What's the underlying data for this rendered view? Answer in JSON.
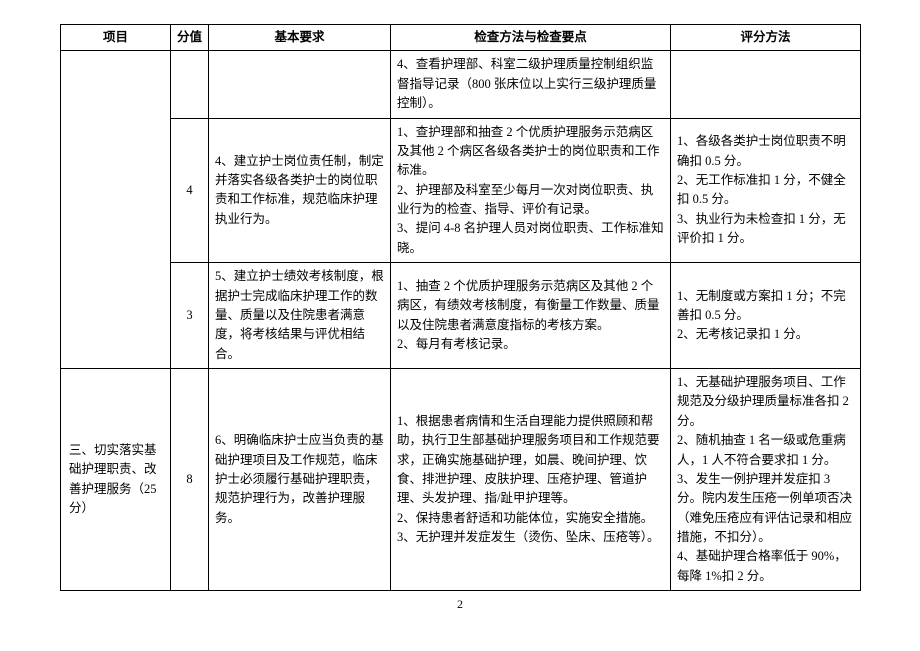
{
  "header": {
    "col1": "项目",
    "col2": "分值",
    "col3": "基本要求",
    "col4": "检查方法与检查要点",
    "col5": "评分方法"
  },
  "rows": {
    "r0": {
      "method": "4、查看护理部、科室二级护理质量控制组织监督指导记录（800 张床位以上实行三级护理质量控制）。"
    },
    "r1": {
      "score": "4",
      "req": "4、建立护士岗位责任制，制定并落实各级各类护士的岗位职责和工作标准，规范临床护理执业行为。",
      "method": "1、查护理部和抽查 2 个优质护理服务示范病区及其他 2 个病区各级各类护士的岗位职责和工作标准。\n2、护理部及科室至少每月一次对岗位职责、执业行为的检查、指导、评价有记录。\n3、提问 4-8 名护理人员对岗位职责、工作标准知晓。",
      "scoring": "1、各级各类护士岗位职责不明确扣 0.5 分。\n2、无工作标准扣 1 分，不健全扣 0.5 分。\n3、执业行为未检查扣 1 分，无评价扣 1 分。"
    },
    "r2": {
      "score": "3",
      "req": "5、建立护士绩效考核制度，根据护士完成临床护理工作的数量、质量以及住院患者满意度，将考核结果与评优相结合。",
      "method": "1、抽查 2 个优质护理服务示范病区及其他 2 个病区，有绩效考核制度，有衡量工作数量、质量以及住院患者满意度指标的考核方案。\n2、每月有考核记录。",
      "scoring": "1、无制度或方案扣 1 分；不完善扣 0.5 分。\n2、无考核记录扣 1 分。"
    },
    "r3": {
      "project": "三、切实落实基础护理职责、改善护理服务（25 分）",
      "score": "8",
      "req": "6、明确临床护士应当负责的基础护理项目及工作规范，临床护士必须履行基础护理职责，规范护理行为，改善护理服务。",
      "method": "1、根据患者病情和生活自理能力提供照顾和帮助，执行卫生部基础护理服务项目和工作规范要求，正确实施基础护理，如晨、晚间护理、饮食、排泄护理、皮肤护理、压疮护理、管道护理、头发护理、指/趾甲护理等。\n2、保持患者舒适和功能体位，实施安全措施。\n3、无护理并发症发生（烫伤、坠床、压疮等）。",
      "scoring": "1、无基础护理服务项目、工作规范及分级护理质量标准各扣 2 分。\n2、随机抽查 1 名一级或危重病人，1 人不符合要求扣 1 分。\n3、发生一例护理并发症扣 3 分。院内发生压疮一例单项否决（难免压疮应有评估记录和相应措施，不扣分）。\n4、基础护理合格率低于 90%，每降 1%扣 2 分。"
    }
  },
  "pageNumber": "2"
}
